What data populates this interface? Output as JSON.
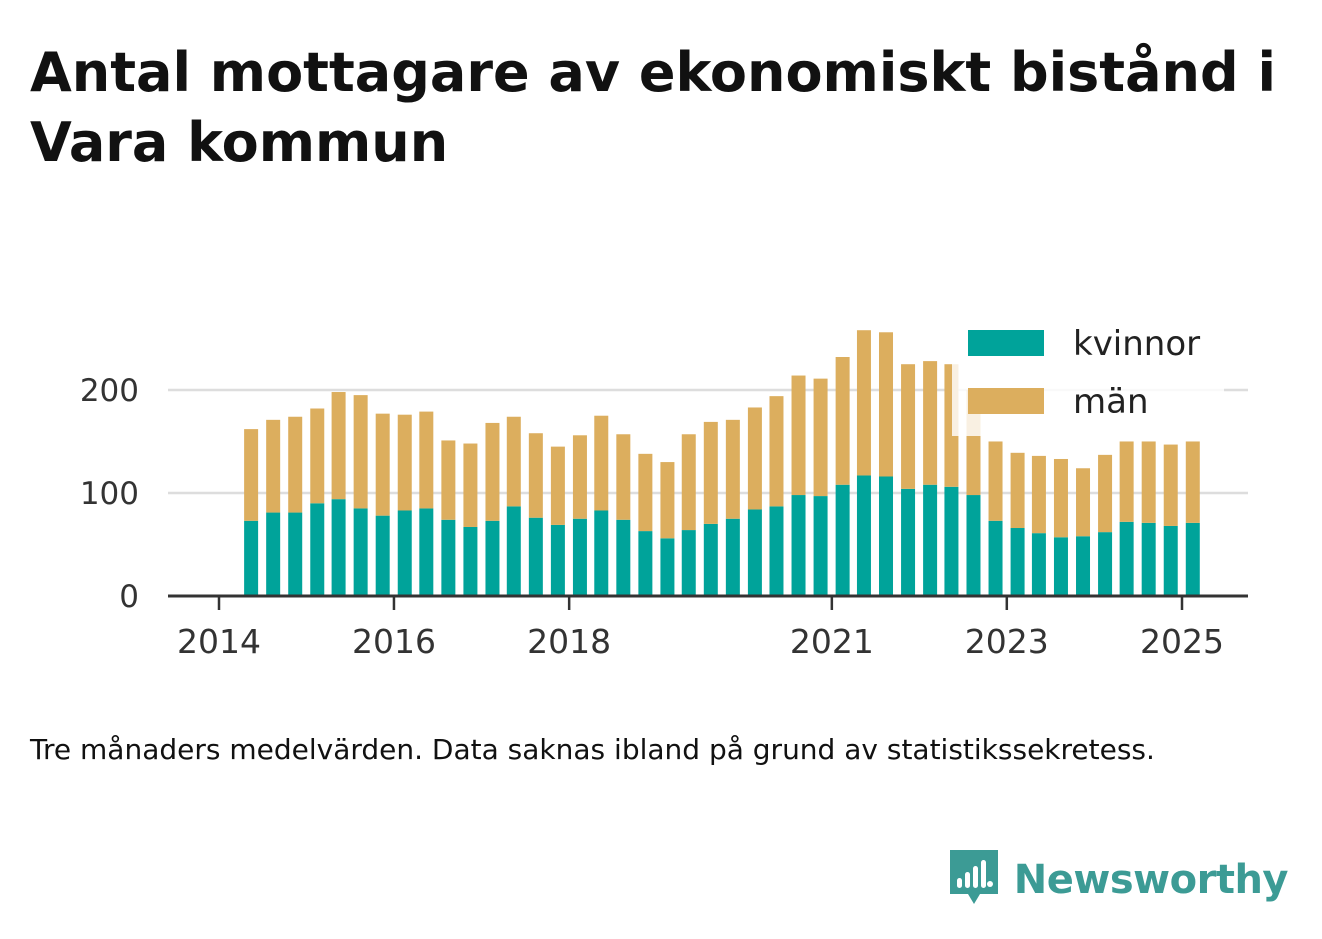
{
  "title": "Antal mottagare av ekonomiskt bistånd i Vara kommun",
  "note": "Tre månaders medelvärden. Data saknas ibland på grund av statistikssekretess.",
  "brand": {
    "name": "Newsworthy",
    "icon": "newsworthy-logo-icon",
    "color": "#3c9b95"
  },
  "chart_data": {
    "type": "bar",
    "stacked": true,
    "x_axis": {
      "min": "2014-01-01",
      "max": "2025-12-31",
      "ticks": [
        "2014",
        "2016",
        "2018",
        "2021",
        "2023",
        "2025"
      ]
    },
    "y_axis": {
      "min": 0,
      "max": 265,
      "ticks": [
        0,
        100,
        200
      ]
    },
    "grid": true,
    "legend_position": "top-right",
    "x": [
      "2014-05",
      "2014-08",
      "2014-11",
      "2015-02",
      "2015-05",
      "2015-08",
      "2015-11",
      "2016-02",
      "2016-05",
      "2016-08",
      "2016-11",
      "2017-02",
      "2017-05",
      "2017-08",
      "2017-11",
      "2018-02",
      "2018-05",
      "2018-08",
      "2018-11",
      "2019-02",
      "2019-05",
      "2019-08",
      "2019-11",
      "2020-02",
      "2020-05",
      "2020-08",
      "2020-11",
      "2021-02",
      "2021-05",
      "2021-08",
      "2021-11",
      "2022-02",
      "2022-05",
      "2022-08",
      "2022-11",
      "2023-02",
      "2023-05",
      "2023-08",
      "2023-11",
      "2024-02",
      "2024-05",
      "2024-08",
      "2024-11",
      "2025-02"
    ],
    "series": [
      {
        "name": "kvinnor",
        "color": "#00a39a",
        "values": [
          73,
          81,
          81,
          90,
          94,
          85,
          78,
          83,
          85,
          74,
          67,
          73,
          87,
          76,
          69,
          75,
          83,
          74,
          63,
          56,
          64,
          70,
          75,
          84,
          87,
          98,
          97,
          108,
          117,
          116,
          104,
          108,
          106,
          98,
          73,
          66,
          61,
          57,
          58,
          62,
          72,
          71,
          68,
          71
        ]
      },
      {
        "name": "män",
        "color": "#dcae5e",
        "values": [
          89,
          90,
          93,
          92,
          104,
          110,
          99,
          93,
          94,
          77,
          81,
          95,
          87,
          82,
          76,
          81,
          92,
          83,
          75,
          74,
          93,
          99,
          96,
          99,
          107,
          116,
          114,
          124,
          141,
          140,
          121,
          120,
          119,
          102,
          77,
          73,
          75,
          76,
          66,
          75,
          78,
          79,
          79,
          79
        ]
      }
    ]
  }
}
